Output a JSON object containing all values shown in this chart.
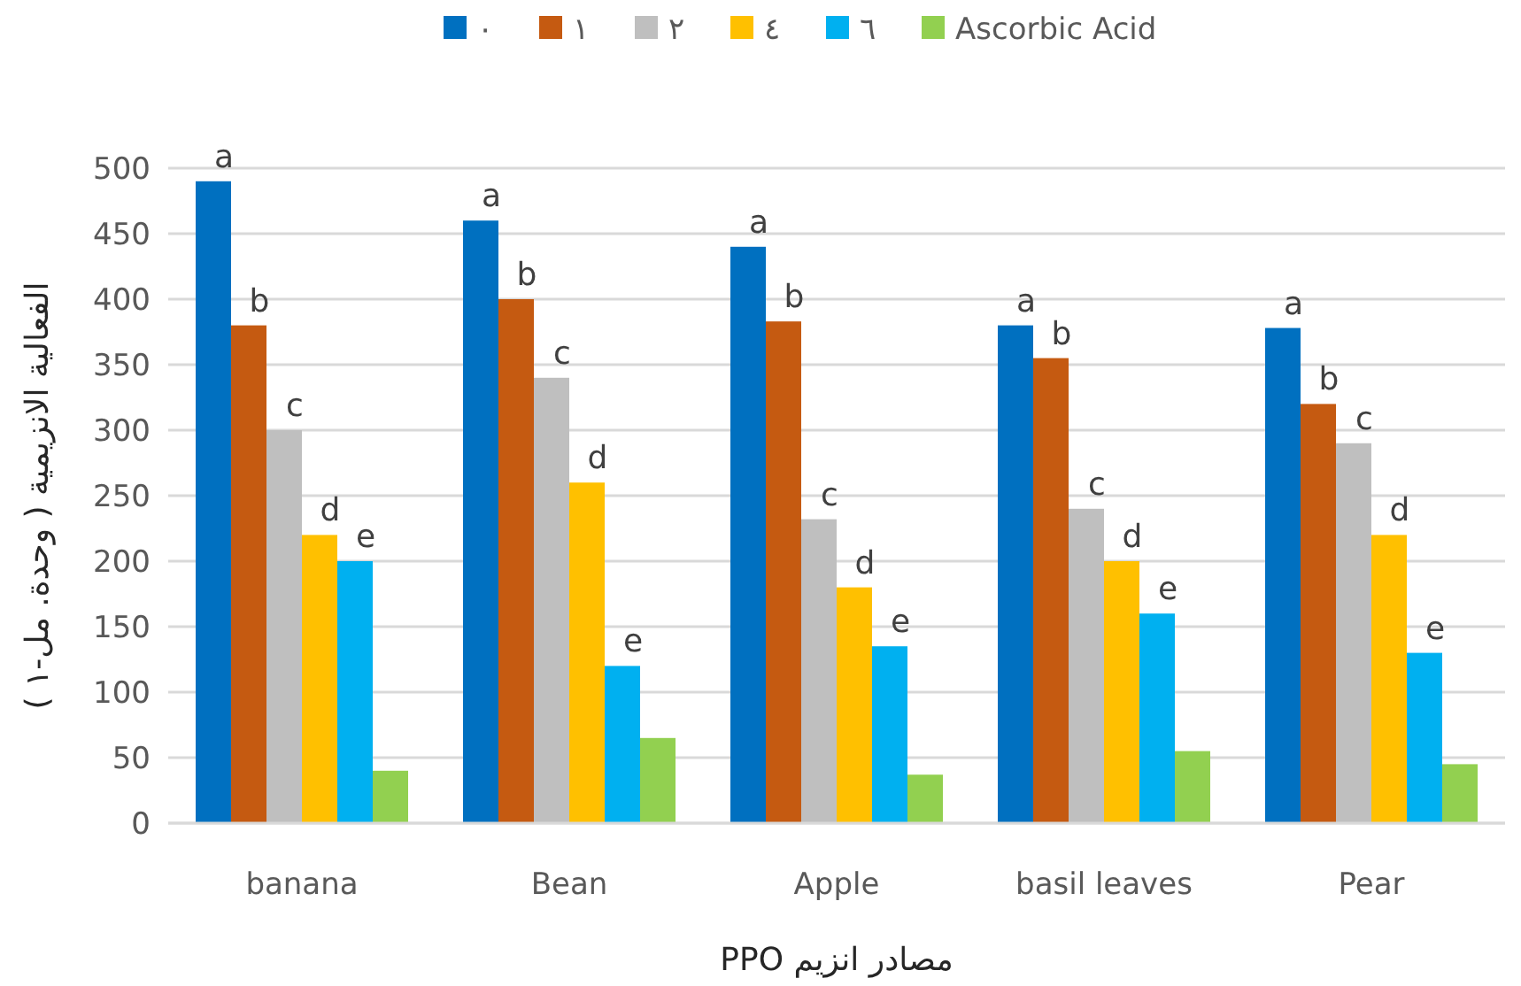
{
  "chart_data": {
    "type": "bar",
    "xlabel": "مصادر انزيم PPO",
    "ylabel": "الفعالية الانزيمية ( وحدة. مل-١ )",
    "categories": [
      "banana",
      "Bean",
      "Apple",
      "basil leaves",
      "Pear"
    ],
    "series": [
      {
        "name": "٠",
        "color": "#0070c0",
        "values": [
          490,
          460,
          440,
          380,
          378
        ],
        "value_labels": [
          "a",
          "a",
          "a",
          "a",
          "a"
        ]
      },
      {
        "name": "١",
        "color": "#c55a11",
        "values": [
          380,
          400,
          383,
          355,
          320
        ],
        "value_labels": [
          "b",
          "b",
          "b",
          "b",
          "b"
        ]
      },
      {
        "name": "٢",
        "color": "#bfbfbf",
        "values": [
          300,
          340,
          232,
          240,
          290
        ],
        "value_labels": [
          "c",
          "c",
          "c",
          "c",
          "c"
        ]
      },
      {
        "name": "٤",
        "color": "#ffc000",
        "values": [
          220,
          260,
          180,
          200,
          220
        ],
        "value_labels": [
          "d",
          "d",
          "d",
          "d",
          "d"
        ]
      },
      {
        "name": "٦",
        "color": "#00b0f0",
        "values": [
          200,
          120,
          135,
          160,
          130
        ],
        "value_labels": [
          "e",
          "e",
          "e",
          "e",
          "e"
        ]
      },
      {
        "name": "Ascorbic Acid",
        "color": "#92d050",
        "values": [
          40,
          65,
          37,
          55,
          45
        ]
      }
    ],
    "ylim": [
      0,
      500
    ],
    "yticks": [
      0,
      50,
      100,
      150,
      200,
      250,
      300,
      350,
      400,
      450,
      500
    ],
    "grid": "y",
    "legend": "top"
  }
}
